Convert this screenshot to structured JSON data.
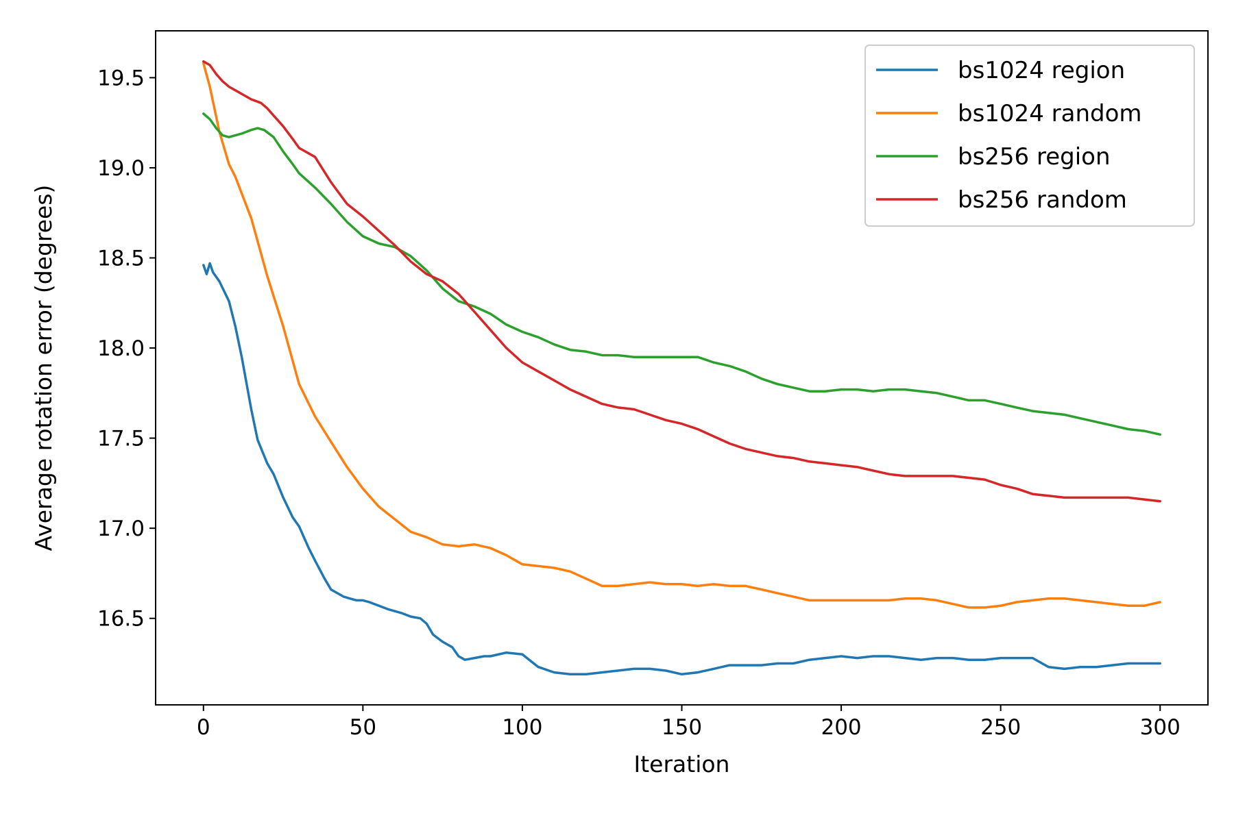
{
  "chart_data": {
    "type": "line",
    "title": "",
    "xlabel": "Iteration",
    "ylabel": "Average rotation error (degrees)",
    "xlim": [
      -15,
      315
    ],
    "ylim": [
      16.02,
      19.76
    ],
    "xticks": [
      0,
      50,
      100,
      150,
      200,
      250,
      300
    ],
    "yticks": [
      16.5,
      17.0,
      17.5,
      18.0,
      18.5,
      19.0,
      19.5
    ],
    "ytick_labels": [
      "16.5",
      "17.0",
      "17.5",
      "18.0",
      "18.5",
      "19.0",
      "19.5"
    ],
    "grid": false,
    "legend_position": "top-right",
    "series": [
      {
        "name": "bs1024 region",
        "color": "#1f77b4",
        "x": [
          0,
          1,
          2,
          3,
          5,
          8,
          10,
          12,
          15,
          17,
          20,
          22,
          25,
          28,
          30,
          33,
          35,
          38,
          40,
          42,
          44,
          46,
          48,
          50,
          52,
          55,
          58,
          60,
          62,
          65,
          68,
          70,
          72,
          75,
          78,
          80,
          82,
          85,
          88,
          90,
          95,
          100,
          105,
          110,
          115,
          120,
          125,
          130,
          135,
          140,
          145,
          150,
          155,
          160,
          165,
          170,
          175,
          180,
          185,
          190,
          195,
          200,
          205,
          210,
          215,
          220,
          225,
          230,
          235,
          240,
          245,
          250,
          255,
          260,
          265,
          270,
          275,
          280,
          285,
          290,
          295,
          300
        ],
        "y": [
          18.46,
          18.41,
          18.47,
          18.42,
          18.37,
          18.26,
          18.12,
          17.95,
          17.66,
          17.49,
          17.36,
          17.3,
          17.17,
          17.06,
          17.01,
          16.89,
          16.82,
          16.72,
          16.66,
          16.64,
          16.62,
          16.61,
          16.6,
          16.6,
          16.59,
          16.57,
          16.55,
          16.54,
          16.53,
          16.51,
          16.5,
          16.47,
          16.41,
          16.37,
          16.34,
          16.29,
          16.27,
          16.28,
          16.29,
          16.29,
          16.31,
          16.3,
          16.23,
          16.2,
          16.19,
          16.19,
          16.2,
          16.21,
          16.22,
          16.22,
          16.21,
          16.19,
          16.2,
          16.22,
          16.24,
          16.24,
          16.24,
          16.25,
          16.25,
          16.27,
          16.28,
          16.29,
          16.28,
          16.29,
          16.29,
          16.28,
          16.27,
          16.28,
          16.28,
          16.27,
          16.27,
          16.28,
          16.28,
          16.28,
          16.23,
          16.22,
          16.23,
          16.23,
          16.24,
          16.25,
          16.25,
          16.25
        ]
      },
      {
        "name": "bs1024 random",
        "color": "#ff7f0e",
        "x": [
          0,
          2,
          5,
          8,
          10,
          15,
          20,
          25,
          30,
          35,
          40,
          45,
          50,
          55,
          60,
          65,
          70,
          75,
          80,
          85,
          90,
          95,
          100,
          105,
          110,
          115,
          120,
          125,
          130,
          135,
          140,
          145,
          150,
          155,
          160,
          165,
          170,
          175,
          180,
          185,
          190,
          195,
          200,
          205,
          210,
          215,
          220,
          225,
          230,
          235,
          240,
          245,
          250,
          255,
          260,
          265,
          270,
          275,
          280,
          285,
          290,
          295,
          300
        ],
        "y": [
          19.58,
          19.45,
          19.2,
          19.02,
          18.95,
          18.72,
          18.4,
          18.12,
          17.8,
          17.62,
          17.48,
          17.34,
          17.22,
          17.12,
          17.05,
          16.98,
          16.95,
          16.91,
          16.9,
          16.91,
          16.89,
          16.85,
          16.8,
          16.79,
          16.78,
          16.76,
          16.72,
          16.68,
          16.68,
          16.69,
          16.7,
          16.69,
          16.69,
          16.68,
          16.69,
          16.68,
          16.68,
          16.66,
          16.64,
          16.62,
          16.6,
          16.6,
          16.6,
          16.6,
          16.6,
          16.6,
          16.61,
          16.61,
          16.6,
          16.58,
          16.56,
          16.56,
          16.57,
          16.59,
          16.6,
          16.61,
          16.61,
          16.6,
          16.59,
          16.58,
          16.57,
          16.57,
          16.59
        ]
      },
      {
        "name": "bs256 region",
        "color": "#2ca02c",
        "x": [
          0,
          2,
          4,
          6,
          8,
          10,
          12,
          15,
          17,
          19,
          22,
          25,
          28,
          30,
          35,
          40,
          45,
          50,
          55,
          60,
          65,
          70,
          75,
          80,
          85,
          90,
          95,
          100,
          105,
          110,
          115,
          120,
          125,
          130,
          135,
          140,
          145,
          150,
          155,
          160,
          165,
          170,
          175,
          180,
          185,
          190,
          195,
          200,
          205,
          210,
          215,
          220,
          225,
          230,
          235,
          240,
          245,
          250,
          255,
          260,
          265,
          270,
          275,
          280,
          285,
          290,
          295,
          300
        ],
        "y": [
          19.3,
          19.27,
          19.22,
          19.18,
          19.17,
          19.18,
          19.19,
          19.21,
          19.22,
          19.21,
          19.17,
          19.09,
          19.02,
          18.97,
          18.89,
          18.8,
          18.7,
          18.62,
          18.58,
          18.56,
          18.51,
          18.43,
          18.33,
          18.26,
          18.23,
          18.19,
          18.13,
          18.09,
          18.06,
          18.02,
          17.99,
          17.98,
          17.96,
          17.96,
          17.95,
          17.95,
          17.95,
          17.95,
          17.95,
          17.92,
          17.9,
          17.87,
          17.83,
          17.8,
          17.78,
          17.76,
          17.76,
          17.77,
          17.77,
          17.76,
          17.77,
          17.77,
          17.76,
          17.75,
          17.73,
          17.71,
          17.71,
          17.69,
          17.67,
          17.65,
          17.64,
          17.63,
          17.61,
          17.59,
          17.57,
          17.55,
          17.54,
          17.52
        ]
      },
      {
        "name": "bs256 random",
        "color": "#d62728",
        "x": [
          0,
          2,
          4,
          6,
          8,
          10,
          12,
          15,
          18,
          20,
          22,
          25,
          28,
          30,
          35,
          40,
          45,
          50,
          55,
          60,
          65,
          70,
          75,
          80,
          85,
          90,
          95,
          100,
          105,
          110,
          115,
          120,
          125,
          130,
          135,
          140,
          145,
          150,
          155,
          160,
          165,
          170,
          175,
          180,
          185,
          190,
          195,
          200,
          205,
          210,
          215,
          220,
          225,
          230,
          235,
          240,
          245,
          250,
          255,
          260,
          265,
          270,
          275,
          280,
          285,
          290,
          295,
          300
        ],
        "y": [
          19.59,
          19.57,
          19.52,
          19.48,
          19.45,
          19.43,
          19.41,
          19.38,
          19.36,
          19.33,
          19.29,
          19.23,
          19.16,
          19.11,
          19.06,
          18.92,
          18.8,
          18.73,
          18.65,
          18.57,
          18.48,
          18.41,
          18.37,
          18.3,
          18.2,
          18.1,
          18.0,
          17.92,
          17.87,
          17.82,
          17.77,
          17.73,
          17.69,
          17.67,
          17.66,
          17.63,
          17.6,
          17.58,
          17.55,
          17.51,
          17.47,
          17.44,
          17.42,
          17.4,
          17.39,
          17.37,
          17.36,
          17.35,
          17.34,
          17.32,
          17.3,
          17.29,
          17.29,
          17.29,
          17.29,
          17.28,
          17.27,
          17.24,
          17.22,
          17.19,
          17.18,
          17.17,
          17.17,
          17.17,
          17.17,
          17.17,
          17.16,
          17.15
        ]
      }
    ]
  }
}
